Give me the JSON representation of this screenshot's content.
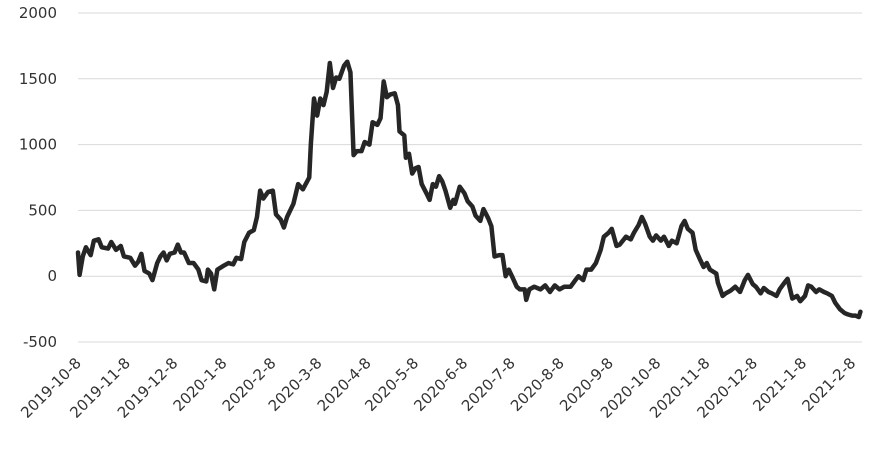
{
  "chart_data": {
    "type": "line",
    "x": [
      "2019-10-8",
      "2019-10-9",
      "2019-10-11",
      "2019-10-13",
      "2019-10-16",
      "2019-10-18",
      "2019-10-21",
      "2019-10-23",
      "2019-10-27",
      "2019-10-29",
      "2019-11-1",
      "2019-11-4",
      "2019-11-6",
      "2019-11-10",
      "2019-11-13",
      "2019-11-15",
      "2019-11-17",
      "2019-11-19",
      "2019-11-22",
      "2019-11-24",
      "2019-11-27",
      "2019-11-29",
      "2019-12-1",
      "2019-12-3",
      "2019-12-5",
      "2019-12-8",
      "2019-12-10",
      "2019-12-12",
      "2019-12-14",
      "2019-12-17",
      "2019-12-20",
      "2019-12-23",
      "2019-12-25",
      "2019-12-28",
      "2019-12-29",
      "2019-12-31",
      "2020-1-2",
      "2020-1-4",
      "2020-1-8",
      "2020-1-11",
      "2020-1-14",
      "2020-1-16",
      "2020-1-19",
      "2020-1-21",
      "2020-1-24",
      "2020-1-27",
      "2020-1-29",
      "2020-1-31",
      "2020-2-2",
      "2020-2-5",
      "2020-2-8",
      "2020-2-10",
      "2020-2-13",
      "2020-2-15",
      "2020-2-17",
      "2020-2-21",
      "2020-2-24",
      "2020-2-27",
      "2020-3-2",
      "2020-3-3",
      "2020-3-5",
      "2020-3-7",
      "2020-3-9",
      "2020-3-11",
      "2020-3-13",
      "2020-3-15",
      "2020-3-17",
      "2020-3-19",
      "2020-3-21",
      "2020-3-24",
      "2020-3-26",
      "2020-3-28",
      "2020-3-30",
      "2020-4-1",
      "2020-4-4",
      "2020-4-6",
      "2020-4-9",
      "2020-4-11",
      "2020-4-14",
      "2020-4-16",
      "2020-4-18",
      "2020-4-20",
      "2020-4-22",
      "2020-4-25",
      "2020-4-27",
      "2020-4-28",
      "2020-5-1",
      "2020-5-2",
      "2020-5-4",
      "2020-5-6",
      "2020-5-8",
      "2020-5-10",
      "2020-5-12",
      "2020-5-15",
      "2020-5-17",
      "2020-5-19",
      "2020-5-21",
      "2020-5-23",
      "2020-5-25",
      "2020-5-27",
      "2020-5-30",
      "2020-6-1",
      "2020-6-2",
      "2020-6-5",
      "2020-6-8",
      "2020-6-10",
      "2020-6-13",
      "2020-6-15",
      "2020-6-18",
      "2020-6-20",
      "2020-6-23",
      "2020-6-25",
      "2020-6-27",
      "2020-6-30",
      "2020-7-2",
      "2020-7-4",
      "2020-7-6",
      "2020-7-8",
      "2020-7-11",
      "2020-7-13",
      "2020-7-16",
      "2020-7-17",
      "2020-7-19",
      "2020-7-22",
      "2020-7-26",
      "2020-7-29",
      "2020-8-1",
      "2020-8-4",
      "2020-8-7",
      "2020-8-10",
      "2020-8-14",
      "2020-8-17",
      "2020-8-19",
      "2020-8-22",
      "2020-8-24",
      "2020-8-27",
      "2020-8-30",
      "2020-9-2",
      "2020-9-4",
      "2020-9-7",
      "2020-9-9",
      "2020-9-12",
      "2020-9-14",
      "2020-9-18",
      "2020-9-21",
      "2020-9-23",
      "2020-9-26",
      "2020-9-28",
      "2020-9-30",
      "2020-10-3",
      "2020-10-5",
      "2020-10-7",
      "2020-10-10",
      "2020-10-12",
      "2020-10-15",
      "2020-10-17",
      "2020-10-20",
      "2020-10-23",
      "2020-10-25",
      "2020-10-27",
      "2020-10-30",
      "2020-11-1",
      "2020-11-4",
      "2020-11-6",
      "2020-11-8",
      "2020-11-10",
      "2020-11-14",
      "2020-11-15",
      "2020-11-18",
      "2020-11-20",
      "2020-11-23",
      "2020-11-26",
      "2020-11-29",
      "2020-12-2",
      "2020-12-4",
      "2020-12-7",
      "2020-12-9",
      "2020-12-12",
      "2020-12-14",
      "2020-12-17",
      "2020-12-19",
      "2020-12-22",
      "2020-12-24",
      "2020-12-27",
      "2020-12-29",
      "2021-1-1",
      "2021-1-4",
      "2021-1-6",
      "2021-1-9",
      "2021-1-11",
      "2021-1-13",
      "2021-1-16",
      "2021-1-18",
      "2021-1-21",
      "2021-1-23",
      "2021-1-26",
      "2021-1-28",
      "2021-1-31",
      "2021-2-3",
      "2021-2-5",
      "2021-2-8",
      "2021-2-10",
      "2021-2-12",
      "2021-2-13"
    ],
    "values": [
      180,
      10,
      150,
      220,
      160,
      270,
      280,
      220,
      210,
      260,
      200,
      230,
      150,
      140,
      80,
      110,
      170,
      40,
      20,
      -30,
      100,
      150,
      180,
      120,
      170,
      180,
      240,
      180,
      180,
      100,
      100,
      50,
      -30,
      -40,
      50,
      20,
      -100,
      50,
      80,
      100,
      90,
      140,
      130,
      260,
      330,
      350,
      450,
      650,
      590,
      640,
      650,
      470,
      430,
      370,
      450,
      550,
      700,
      660,
      750,
      1000,
      1350,
      1220,
      1350,
      1300,
      1400,
      1620,
      1430,
      1510,
      1500,
      1600,
      1630,
      1550,
      920,
      950,
      950,
      1020,
      1000,
      1170,
      1150,
      1200,
      1480,
      1360,
      1380,
      1390,
      1300,
      1100,
      1070,
      900,
      930,
      780,
      820,
      830,
      700,
      630,
      580,
      700,
      680,
      760,
      720,
      650,
      520,
      580,
      550,
      680,
      630,
      570,
      530,
      460,
      420,
      510,
      440,
      380,
      150,
      160,
      160,
      0,
      50,
      0,
      -80,
      -100,
      -100,
      -180,
      -100,
      -80,
      -100,
      -70,
      -120,
      -70,
      -100,
      -80,
      -80,
      -30,
      0,
      -30,
      50,
      50,
      100,
      200,
      300,
      330,
      360,
      230,
      240,
      300,
      280,
      330,
      390,
      450,
      400,
      300,
      270,
      310,
      270,
      300,
      230,
      270,
      250,
      380,
      420,
      360,
      330,
      200,
      120,
      70,
      100,
      50,
      20,
      -50,
      -150,
      -130,
      -110,
      -80,
      -120,
      -30,
      10,
      -60,
      -80,
      -130,
      -90,
      -120,
      -130,
      -150,
      -100,
      -50,
      -20,
      -170,
      -150,
      -190,
      -150,
      -70,
      -80,
      -120,
      -100,
      -120,
      -130,
      -150,
      -200,
      -250,
      -280,
      -290,
      -300,
      -300,
      -310,
      -270
    ],
    "color": "#262626",
    "xlim": [
      "2019-10-8",
      "2021-2-14"
    ],
    "xticks": [
      "2019-10-8",
      "2019-11-8",
      "2019-12-8",
      "2020-1-8",
      "2020-2-8",
      "2020-3-8",
      "2020-4-8",
      "2020-5-8",
      "2020-6-8",
      "2020-7-8",
      "2020-8-8",
      "2020-9-8",
      "2020-10-8",
      "2020-11-8",
      "2020-12-8",
      "2021-1-8",
      "2021-2-8"
    ],
    "ylim": [
      -500,
      2000
    ],
    "yticks": [
      -500,
      0,
      500,
      1000,
      1500,
      2000
    ],
    "grid": true
  }
}
